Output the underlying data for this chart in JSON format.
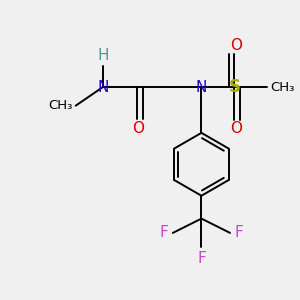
{
  "background_color": "#f0f0f0",
  "bond_color": "#000000",
  "lw": 1.4,
  "N_color": "#2200cc",
  "H_color": "#4d9999",
  "O_color": "#dd0000",
  "S_color": "#aaaa00",
  "F_color": "#cc44cc",
  "C_color": "#000000",
  "figsize": [
    3.0,
    3.0
  ],
  "dpi": 100,
  "xlim": [
    0.0,
    10.0
  ],
  "ylim": [
    0.0,
    10.0
  ]
}
